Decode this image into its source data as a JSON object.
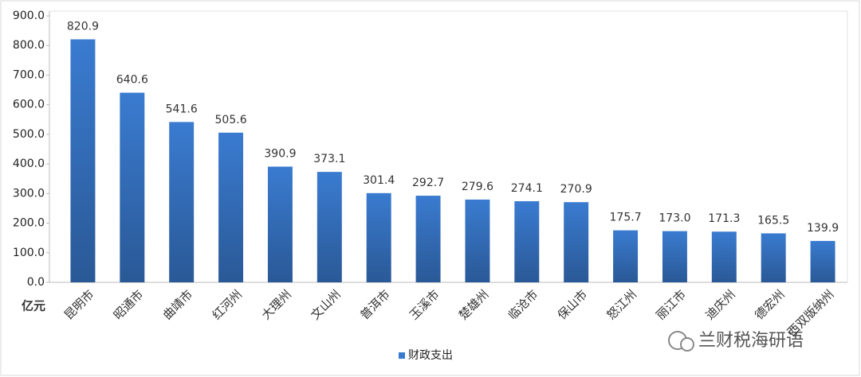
{
  "chart_data": {
    "type": "bar",
    "y_unit_label": "亿元",
    "categories": [
      "昆明市",
      "昭通市",
      "曲靖市",
      "红河州",
      "大理州",
      "文山州",
      "普洱市",
      "玉溪市",
      "楚雄州",
      "临沧市",
      "保山市",
      "怒江州",
      "丽江市",
      "迪庆州",
      "德宏州",
      "西双版纳州"
    ],
    "series": [
      {
        "name": "财政支出",
        "color": "#3a7bd0",
        "values": [
          820.9,
          640.6,
          541.6,
          505.6,
          390.9,
          373.1,
          301.4,
          292.7,
          279.6,
          274.1,
          270.9,
          175.7,
          173.0,
          171.3,
          165.5,
          139.9
        ],
        "value_labels": [
          "820.9",
          "640.6",
          "541.6",
          "505.6",
          "390.9",
          "373.1",
          "301.4",
          "292.7",
          "279.6",
          "274.1",
          "270.9",
          "175.7",
          "173.0",
          "171.3",
          "165.5",
          "139.9"
        ]
      }
    ],
    "ylim": [
      0,
      900
    ],
    "yticks": [
      {
        "value": 0,
        "label": "0.0"
      },
      {
        "value": 100,
        "label": "100.0"
      },
      {
        "value": 200,
        "label": "200.0"
      },
      {
        "value": 300,
        "label": "300.0"
      },
      {
        "value": 400,
        "label": "400.0"
      },
      {
        "value": 500,
        "label": "500.0"
      },
      {
        "value": 600,
        "label": "600.0"
      },
      {
        "value": 700,
        "label": "700.0"
      },
      {
        "value": 800,
        "label": "800.0"
      },
      {
        "value": 900,
        "label": "900.0"
      }
    ],
    "grid": false,
    "legend_position": "bottom",
    "watermark": "兰财税海研语"
  }
}
